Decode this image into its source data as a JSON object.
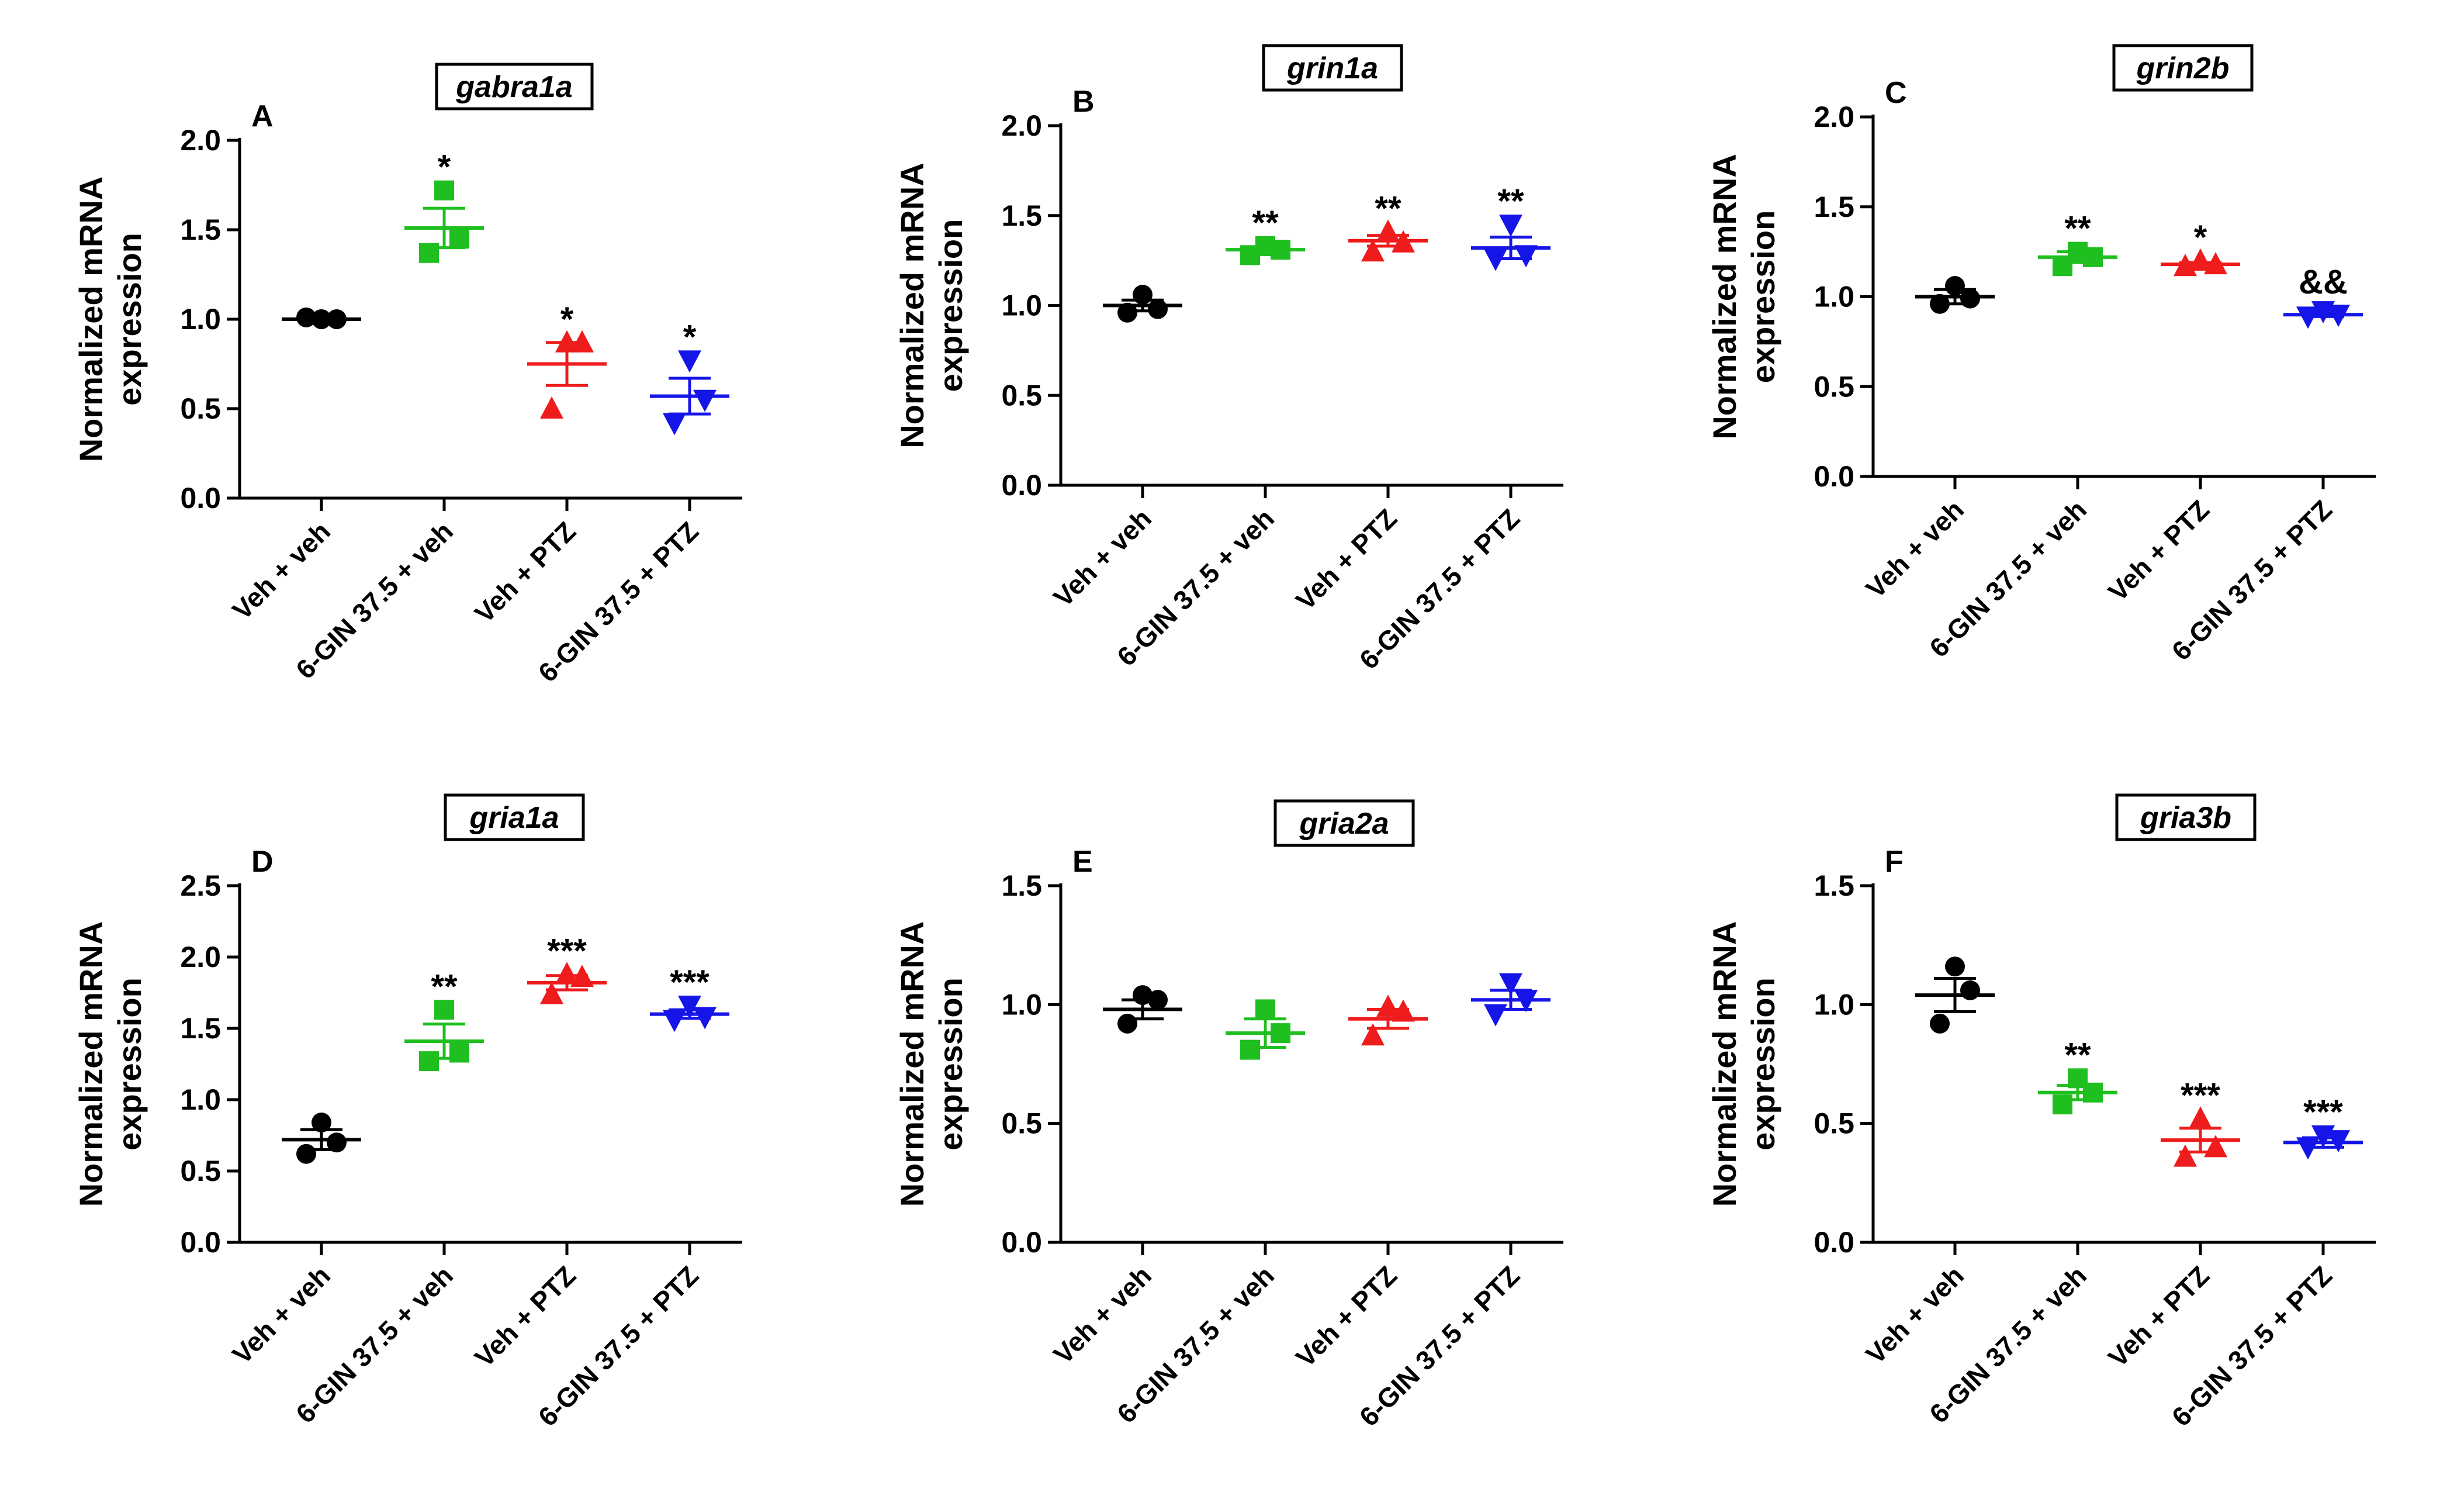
{
  "figure": {
    "ylabel_line1": "Normalized mRNA",
    "ylabel_line2": "expression",
    "categories": [
      "Veh + veh",
      "6-GIN 37.5 + veh",
      "Veh + PTZ",
      "6-GIN 37.5 + PTZ"
    ],
    "group_colors": [
      "#000000",
      "#1fbf1f",
      "#ee1c1c",
      "#1515e8"
    ],
    "group_markers": [
      "circle",
      "square",
      "triangle-up",
      "triangle-down"
    ]
  },
  "chart_data": [
    {
      "type": "scatter",
      "panel": "A",
      "title": "gabra1a",
      "ylabel": "Normalized mRNA expression",
      "ylim": [
        0,
        2.0
      ],
      "yticks": [
        "0.0",
        "0.5",
        "1.0",
        "1.5",
        "2.0"
      ],
      "categories": [
        "Veh + veh",
        "6-GIN 37.5 + veh",
        "Veh + PTZ",
        "6-GIN 37.5 + PTZ"
      ],
      "series": [
        {
          "name": "Veh + veh",
          "points": [
            1.0,
            1.0,
            1.01
          ],
          "mean": 1.0,
          "sem": 0.005,
          "significance": ""
        },
        {
          "name": "6-GIN 37.5 + veh",
          "points": [
            1.72,
            1.45,
            1.37
          ],
          "mean": 1.51,
          "sem": 0.11,
          "significance": "*"
        },
        {
          "name": "Veh + PTZ",
          "points": [
            0.87,
            0.87,
            0.5
          ],
          "mean": 0.75,
          "sem": 0.12,
          "significance": "*"
        },
        {
          "name": "6-GIN 37.5 + PTZ",
          "points": [
            0.77,
            0.55,
            0.42
          ],
          "mean": 0.57,
          "sem": 0.1,
          "significance": "*"
        }
      ]
    },
    {
      "type": "scatter",
      "panel": "B",
      "title": "grin1a",
      "ylabel": "Normalized mRNA expression",
      "ylim": [
        0,
        2.0
      ],
      "yticks": [
        "0.0",
        "0.5",
        "1.0",
        "1.5",
        "2.0"
      ],
      "categories": [
        "Veh + veh",
        "6-GIN 37.5 + veh",
        "Veh + PTZ",
        "6-GIN 37.5 + PTZ"
      ],
      "series": [
        {
          "name": "Veh + veh",
          "points": [
            1.06,
            0.98,
            0.96
          ],
          "mean": 1.0,
          "sem": 0.03,
          "significance": ""
        },
        {
          "name": "6-GIN 37.5 + veh",
          "points": [
            1.33,
            1.31,
            1.28
          ],
          "mean": 1.31,
          "sem": 0.015,
          "significance": "**"
        },
        {
          "name": "Veh + PTZ",
          "points": [
            1.41,
            1.35,
            1.3
          ],
          "mean": 1.36,
          "sem": 0.03,
          "significance": "**"
        },
        {
          "name": "6-GIN 37.5 + PTZ",
          "points": [
            1.45,
            1.28,
            1.26
          ],
          "mean": 1.32,
          "sem": 0.06,
          "significance": "**"
        }
      ]
    },
    {
      "type": "scatter",
      "panel": "C",
      "title": "grin2b",
      "ylabel": "Normalized mRNA expression",
      "ylim": [
        0,
        2.0
      ],
      "yticks": [
        "0.0",
        "0.5",
        "1.0",
        "1.5",
        "2.0"
      ],
      "categories": [
        "Veh + veh",
        "6-GIN 37.5 + veh",
        "Veh + PTZ",
        "6-GIN 37.5 + PTZ"
      ],
      "series": [
        {
          "name": "Veh + veh",
          "points": [
            1.06,
            0.99,
            0.96
          ],
          "mean": 1.0,
          "sem": 0.04,
          "significance": ""
        },
        {
          "name": "6-GIN 37.5 + veh",
          "points": [
            1.25,
            1.22,
            1.17
          ],
          "mean": 1.22,
          "sem": 0.03,
          "significance": "**"
        },
        {
          "name": "Veh + PTZ",
          "points": [
            1.2,
            1.18,
            1.17
          ],
          "mean": 1.18,
          "sem": 0.01,
          "significance": "*"
        },
        {
          "name": "6-GIN 37.5 + PTZ",
          "points": [
            0.92,
            0.9,
            0.89
          ],
          "mean": 0.9,
          "sem": 0.01,
          "significance": "&&"
        }
      ]
    },
    {
      "type": "scatter",
      "panel": "D",
      "title": "gria1a",
      "ylabel": "Normalized mRNA expression",
      "ylim": [
        0,
        2.5
      ],
      "yticks": [
        "0.0",
        "0.5",
        "1.0",
        "1.5",
        "2.0",
        "2.5"
      ],
      "categories": [
        "Veh + veh",
        "6-GIN 37.5 + veh",
        "Veh + PTZ",
        "6-GIN 37.5 + PTZ"
      ],
      "series": [
        {
          "name": "Veh + veh",
          "points": [
            0.84,
            0.7,
            0.62
          ],
          "mean": 0.72,
          "sem": 0.07,
          "significance": ""
        },
        {
          "name": "6-GIN 37.5 + veh",
          "points": [
            1.63,
            1.33,
            1.27
          ],
          "mean": 1.41,
          "sem": 0.12,
          "significance": "**"
        },
        {
          "name": "Veh + PTZ",
          "points": [
            1.88,
            1.86,
            1.74
          ],
          "mean": 1.82,
          "sem": 0.05,
          "significance": "***"
        },
        {
          "name": "6-GIN 37.5 + PTZ",
          "points": [
            1.66,
            1.58,
            1.56
          ],
          "mean": 1.6,
          "sem": 0.03,
          "significance": "***"
        }
      ]
    },
    {
      "type": "scatter",
      "panel": "E",
      "title": "gria2a",
      "ylabel": "Normalized mRNA expression",
      "ylim": [
        0,
        1.5
      ],
      "yticks": [
        "0.0",
        "0.5",
        "1.0",
        "1.5"
      ],
      "categories": [
        "Veh + veh",
        "6-GIN 37.5 + veh",
        "Veh + PTZ",
        "6-GIN 37.5 + PTZ"
      ],
      "series": [
        {
          "name": "Veh + veh",
          "points": [
            1.04,
            1.02,
            0.92
          ],
          "mean": 0.98,
          "sem": 0.04,
          "significance": ""
        },
        {
          "name": "6-GIN 37.5 + veh",
          "points": [
            0.98,
            0.88,
            0.81
          ],
          "mean": 0.88,
          "sem": 0.06,
          "significance": ""
        },
        {
          "name": "Veh + PTZ",
          "points": [
            0.99,
            0.97,
            0.87
          ],
          "mean": 0.94,
          "sem": 0.04,
          "significance": ""
        },
        {
          "name": "6-GIN 37.5 + PTZ",
          "points": [
            1.09,
            1.02,
            0.96
          ],
          "mean": 1.02,
          "sem": 0.04,
          "significance": ""
        }
      ]
    },
    {
      "type": "scatter",
      "panel": "F",
      "title": "gria3b",
      "ylabel": "Normalized mRNA expression",
      "ylim": [
        0,
        1.5
      ],
      "yticks": [
        "0.0",
        "0.5",
        "1.0",
        "1.5"
      ],
      "categories": [
        "Veh + veh",
        "6-GIN 37.5 + veh",
        "Veh + PTZ",
        "6-GIN 37.5 + PTZ"
      ],
      "series": [
        {
          "name": "Veh + veh",
          "points": [
            1.16,
            1.06,
            0.92
          ],
          "mean": 1.04,
          "sem": 0.07,
          "significance": ""
        },
        {
          "name": "6-GIN 37.5 + veh",
          "points": [
            0.69,
            0.63,
            0.58
          ],
          "mean": 0.63,
          "sem": 0.03,
          "significance": "**"
        },
        {
          "name": "Veh + PTZ",
          "points": [
            0.52,
            0.4,
            0.36
          ],
          "mean": 0.43,
          "sem": 0.05,
          "significance": "***"
        },
        {
          "name": "6-GIN 37.5 + PTZ",
          "points": [
            0.45,
            0.43,
            0.4
          ],
          "mean": 0.42,
          "sem": 0.02,
          "significance": "***"
        }
      ]
    }
  ]
}
